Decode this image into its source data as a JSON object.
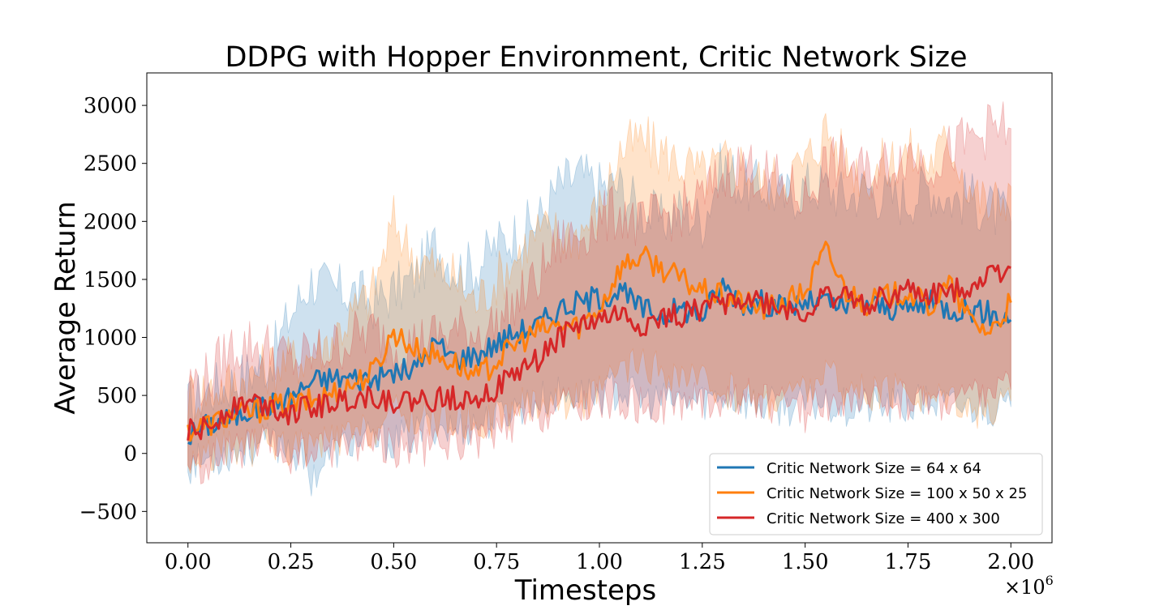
{
  "chart_data": {
    "type": "line",
    "title": "DDPG with Hopper Environment, Critic Network Size",
    "xlabel": "Timesteps",
    "ylabel": "Average Return",
    "x_offset_label": "×10",
    "x_offset_exponent": "6",
    "xlim": [
      -0.1,
      2.1
    ],
    "ylim": [
      -770,
      3280
    ],
    "x_ticks": [
      0.0,
      0.25,
      0.5,
      0.75,
      1.0,
      1.25,
      1.5,
      1.75,
      2.0
    ],
    "x_tick_labels": [
      "0.00",
      "0.25",
      "0.50",
      "0.75",
      "1.00",
      "1.25",
      "1.50",
      "1.75",
      "2.00"
    ],
    "y_ticks": [
      -500,
      0,
      500,
      1000,
      1500,
      2000,
      2500,
      3000
    ],
    "y_tick_labels": [
      "−500",
      "0",
      "500",
      "1000",
      "1500",
      "2000",
      "2500",
      "3000"
    ],
    "x_units": "timesteps ×10^6",
    "grid": false,
    "legend_position": "lower-right",
    "series": [
      {
        "name": "Critic Network Size = 64 x 64",
        "color": "#1f77b4",
        "x": [
          0.0,
          0.05,
          0.1,
          0.15,
          0.2,
          0.25,
          0.3,
          0.35,
          0.4,
          0.45,
          0.5,
          0.55,
          0.6,
          0.65,
          0.7,
          0.75,
          0.8,
          0.85,
          0.9,
          0.95,
          1.0,
          1.05,
          1.1,
          1.15,
          1.2,
          1.25,
          1.3,
          1.35,
          1.4,
          1.45,
          1.5,
          1.55,
          1.6,
          1.65,
          1.7,
          1.75,
          1.8,
          1.85,
          1.9,
          1.95,
          2.0
        ],
        "mean": [
          150,
          250,
          300,
          380,
          420,
          480,
          620,
          650,
          650,
          640,
          700,
          720,
          950,
          820,
          850,
          950,
          1050,
          1100,
          1250,
          1300,
          1350,
          1400,
          1250,
          1200,
          1250,
          1200,
          1450,
          1300,
          1300,
          1250,
          1300,
          1300,
          1250,
          1300,
          1250,
          1250,
          1300,
          1250,
          1250,
          1200,
          1150
        ],
        "lower": [
          -100,
          -50,
          0,
          50,
          100,
          50,
          -200,
          0,
          100,
          100,
          100,
          150,
          250,
          200,
          250,
          300,
          400,
          450,
          500,
          500,
          500,
          550,
          450,
          450,
          450,
          450,
          500,
          450,
          400,
          400,
          400,
          450,
          400,
          400,
          400,
          400,
          450,
          400,
          400,
          400,
          400
        ],
        "upper": [
          400,
          550,
          600,
          700,
          800,
          1200,
          1500,
          1400,
          1400,
          1300,
          1400,
          1500,
          1800,
          1600,
          1600,
          1800,
          1900,
          2000,
          2300,
          2400,
          2300,
          2300,
          2100,
          2000,
          2100,
          2000,
          2500,
          2300,
          2300,
          2200,
          2300,
          2300,
          2200,
          2300,
          2200,
          2200,
          2300,
          2200,
          2200,
          2100,
          2000
        ]
      },
      {
        "name": "Critic Network Size = 100 x 50 x 25",
        "color": "#ff7f0e",
        "x": [
          0.0,
          0.05,
          0.1,
          0.15,
          0.2,
          0.25,
          0.3,
          0.35,
          0.4,
          0.45,
          0.5,
          0.55,
          0.6,
          0.65,
          0.7,
          0.75,
          0.8,
          0.85,
          0.9,
          0.95,
          1.0,
          1.05,
          1.1,
          1.15,
          1.2,
          1.25,
          1.3,
          1.35,
          1.4,
          1.45,
          1.5,
          1.55,
          1.6,
          1.65,
          1.7,
          1.75,
          1.8,
          1.85,
          1.9,
          1.95,
          2.0
        ],
        "mean": [
          200,
          250,
          320,
          350,
          400,
          420,
          450,
          520,
          600,
          700,
          1050,
          900,
          850,
          780,
          650,
          800,
          950,
          1050,
          1100,
          1100,
          1250,
          1600,
          1700,
          1600,
          1500,
          1400,
          1350,
          1300,
          1250,
          1300,
          1400,
          1750,
          1400,
          1300,
          1350,
          1400,
          1250,
          1450,
          1150,
          1050,
          1300
        ],
        "lower": [
          -100,
          0,
          50,
          50,
          100,
          50,
          50,
          100,
          150,
          200,
          350,
          300,
          300,
          300,
          250,
          300,
          400,
          450,
          450,
          450,
          500,
          700,
          750,
          700,
          650,
          600,
          550,
          500,
          450,
          500,
          550,
          700,
          550,
          500,
          500,
          550,
          450,
          550,
          400,
          350,
          450
        ],
        "upper": [
          500,
          550,
          600,
          650,
          750,
          800,
          850,
          1000,
          1200,
          1400,
          2000,
          1700,
          1600,
          1500,
          1300,
          1500,
          1700,
          1900,
          1900,
          1900,
          2100,
          2600,
          2700,
          2600,
          2500,
          2400,
          2500,
          2500,
          2300,
          2400,
          2500,
          2800,
          2500,
          2400,
          2500,
          2600,
          2500,
          2700,
          2300,
          2100,
          2300
        ]
      },
      {
        "name": "Critic Network Size = 400 x 300",
        "color": "#d62728",
        "x": [
          0.0,
          0.05,
          0.1,
          0.15,
          0.2,
          0.25,
          0.3,
          0.35,
          0.4,
          0.45,
          0.5,
          0.55,
          0.6,
          0.65,
          0.7,
          0.75,
          0.8,
          0.85,
          0.9,
          0.95,
          1.0,
          1.05,
          1.1,
          1.15,
          1.2,
          1.25,
          1.3,
          1.35,
          1.4,
          1.45,
          1.5,
          1.55,
          1.6,
          1.65,
          1.7,
          1.75,
          1.8,
          1.85,
          1.9,
          1.95,
          2.0
        ],
        "mean": [
          180,
          220,
          400,
          450,
          420,
          350,
          400,
          430,
          480,
          500,
          450,
          450,
          460,
          480,
          500,
          550,
          700,
          800,
          1000,
          1100,
          1150,
          1200,
          1100,
          1150,
          1200,
          1250,
          1300,
          1350,
          1300,
          1250,
          1200,
          1350,
          1350,
          1300,
          1350,
          1400,
          1350,
          1400,
          1450,
          1550,
          1600
        ],
        "lower": [
          -150,
          -100,
          0,
          50,
          50,
          -50,
          0,
          50,
          100,
          100,
          50,
          50,
          50,
          100,
          100,
          150,
          250,
          300,
          400,
          400,
          450,
          450,
          400,
          400,
          450,
          450,
          450,
          500,
          450,
          400,
          350,
          450,
          450,
          400,
          450,
          450,
          450,
          450,
          500,
          550,
          550
        ],
        "upper": [
          600,
          650,
          900,
          950,
          900,
          800,
          850,
          900,
          1000,
          1050,
          950,
          950,
          1000,
          1050,
          1050,
          1100,
          1300,
          1500,
          1800,
          1900,
          2000,
          2100,
          1950,
          2050,
          2100,
          2200,
          2400,
          2500,
          2400,
          2300,
          2200,
          2500,
          2500,
          2400,
          2500,
          2600,
          2500,
          2600,
          2700,
          2800,
          2800
        ]
      }
    ]
  }
}
